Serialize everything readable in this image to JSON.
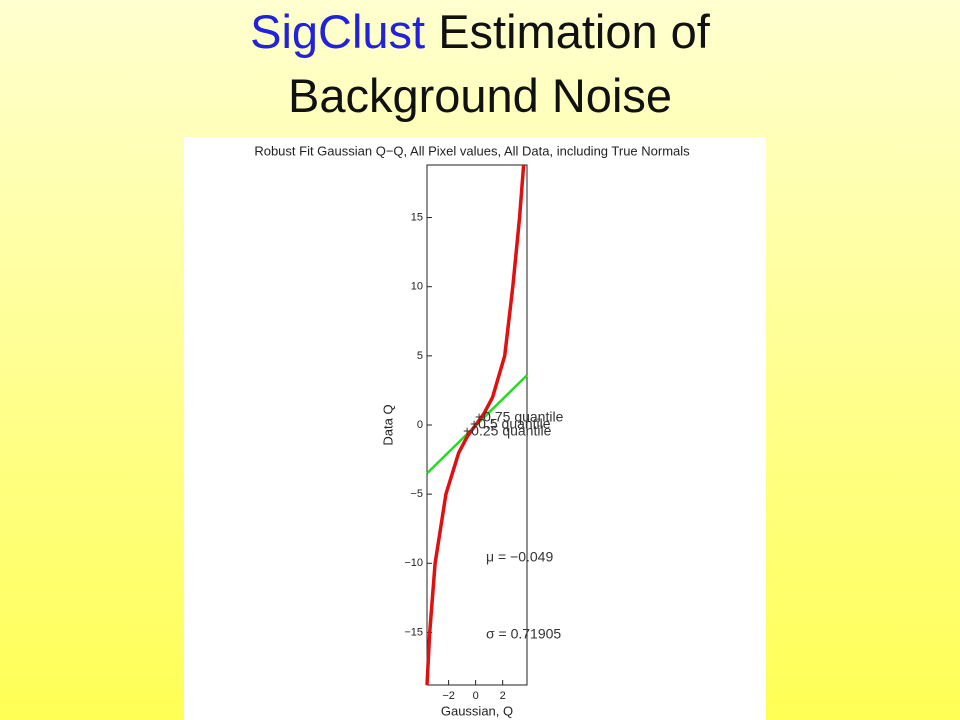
{
  "slide": {
    "title_highlight": "SigClust",
    "title_rest": "Estimation of Background Noise"
  },
  "chart_data": {
    "type": "line",
    "title": "Robust Fit Gaussian Q−Q, All Pixel values, All Data, including True Normals",
    "xlabel": "Gaussian, Q",
    "ylabel": "Data Q",
    "xlim": [
      -3.6,
      3.8
    ],
    "ylim": [
      -18.8,
      18.8
    ],
    "xticks": [
      {
        "value": -2,
        "label": "−2"
      },
      0,
      2
    ],
    "yticks": [
      {
        "value": -15,
        "label": "−15"
      },
      {
        "value": -10,
        "label": "−10"
      },
      {
        "value": -5,
        "label": "−5"
      },
      0,
      5,
      10,
      15
    ],
    "series": [
      {
        "color": "#e01010",
        "x": [
          -3.6,
          -3.4,
          -3.0,
          -2.2,
          -1.25,
          -0.6,
          0,
          0.6,
          1.25,
          2.15,
          2.75,
          3.25,
          3.55
        ],
        "values": [
          -18.8,
          -15,
          -10,
          -5,
          -2,
          -0.8,
          0,
          0.8,
          2,
          5,
          10,
          15,
          18.8
        ]
      },
      {
        "color": "#22dd22",
        "x": [
          -3.6,
          3.8
        ],
        "values": [
          -3.5,
          3.6
        ]
      }
    ],
    "annotations": [
      "+0.75 quantile",
      "+0.5 quantile",
      "+0.25 quantile",
      "μ = −0.049",
      "σ = 0.71905"
    ]
  }
}
